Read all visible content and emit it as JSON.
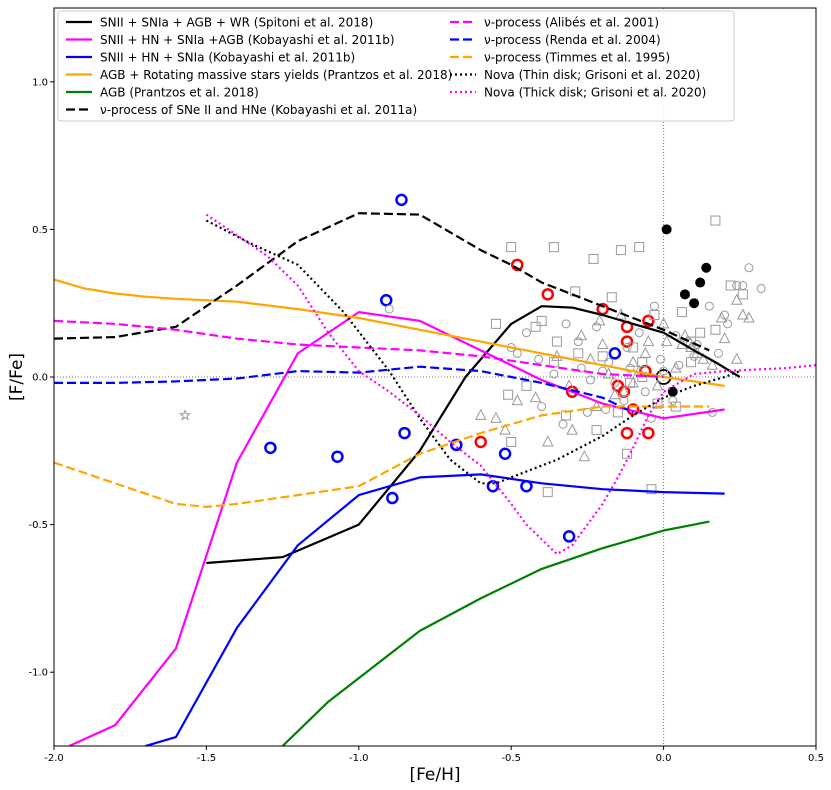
{
  "chart_data": {
    "type": "line",
    "xlabel": "[Fe/H]",
    "ylabel": "[F/Fe]",
    "xlim": [
      -2.0,
      0.5
    ],
    "ylim": [
      -1.25,
      1.25
    ],
    "xticks": [
      -2.0,
      -1.5,
      -1.0,
      -0.5,
      0.0,
      0.5
    ],
    "yticks": [
      -1.0,
      -0.5,
      0.0,
      0.5,
      1.0
    ],
    "xtick_labels": [
      "-2.0",
      "-1.5",
      "-1.0",
      "-0.5",
      "0.0",
      "0.5"
    ],
    "ytick_labels": [
      "-1.0",
      "-0.5",
      "0.0",
      "0.5",
      "1.0"
    ],
    "reference_lines": {
      "x": 0.0,
      "y": 0.0,
      "style": "dotted",
      "color": "#777777"
    },
    "legend_placement": "top",
    "series": [
      {
        "name": "SNII + SNIa + AGB + WR (Spitoni et al. 2018)",
        "color": "#000000",
        "dash": "solid",
        "x": [
          -1.5,
          -1.25,
          -1.0,
          -0.8,
          -0.65,
          -0.5,
          -0.4,
          -0.3,
          -0.2,
          -0.1,
          0.0,
          0.1,
          0.17,
          0.25
        ],
        "y": [
          -0.63,
          -0.61,
          -0.5,
          -0.25,
          0.0,
          0.18,
          0.24,
          0.235,
          0.21,
          0.18,
          0.15,
          0.09,
          0.05,
          0.0
        ]
      },
      {
        "name": "SNII + HN + SNIa +AGB (Kobayashi et al. 2011b)",
        "color": "#ff00ff",
        "dash": "solid",
        "x": [
          -1.95,
          -1.8,
          -1.6,
          -1.4,
          -1.2,
          -1.0,
          -0.8,
          -0.6,
          -0.4,
          -0.2,
          0.0,
          0.2
        ],
        "y": [
          -1.25,
          -1.18,
          -0.92,
          -0.29,
          0.08,
          0.22,
          0.19,
          0.09,
          -0.01,
          -0.09,
          -0.14,
          -0.11
        ]
      },
      {
        "name": "SNII + HN + SNIa (Kobayashi et al. 2011b)",
        "color": "#0000ff",
        "dash": "solid",
        "x": [
          -1.7,
          -1.6,
          -1.4,
          -1.2,
          -1.0,
          -0.8,
          -0.6,
          -0.4,
          -0.2,
          0.0,
          0.2
        ],
        "y": [
          -1.25,
          -1.22,
          -0.85,
          -0.57,
          -0.4,
          -0.34,
          -0.33,
          -0.36,
          -0.38,
          -0.39,
          -0.395
        ]
      },
      {
        "name": "AGB + Rotating massive stars yields (Prantzos et al. 2018)",
        "color": "#ffa500",
        "dash": "solid",
        "x": [
          -2.0,
          -1.9,
          -1.8,
          -1.7,
          -1.6,
          -1.5,
          -1.4,
          -1.2,
          -1.0,
          -0.8,
          -0.6,
          -0.4,
          -0.2,
          0.0,
          0.1,
          0.2
        ],
        "y": [
          0.33,
          0.3,
          0.283,
          0.272,
          0.265,
          0.26,
          0.255,
          0.23,
          0.2,
          0.16,
          0.12,
          0.08,
          0.04,
          0.0,
          -0.015,
          -0.03
        ]
      },
      {
        "name": "AGB (Prantzos et al. 2018)",
        "color": "#008000",
        "dash": "solid",
        "x": [
          -1.25,
          -1.1,
          -1.0,
          -0.9,
          -0.8,
          -0.6,
          -0.4,
          -0.2,
          0.0,
          0.1,
          0.15
        ],
        "y": [
          -1.25,
          -1.1,
          -1.02,
          -0.94,
          -0.86,
          -0.75,
          -0.65,
          -0.58,
          -0.52,
          -0.5,
          -0.49
        ]
      },
      {
        "name": "ν-process of SNe II and HNe (Kobayashi et al. 2011a)",
        "color": "#000000",
        "dash": "dashed",
        "x": [
          -2.0,
          -1.8,
          -1.6,
          -1.4,
          -1.2,
          -1.0,
          -0.8,
          -0.6,
          -0.5,
          -0.4,
          -0.2,
          0.0,
          0.15
        ],
        "y": [
          0.13,
          0.135,
          0.17,
          0.31,
          0.46,
          0.555,
          0.55,
          0.43,
          0.38,
          0.32,
          0.24,
          0.16,
          0.09
        ]
      },
      {
        "name": "ν-process (Alibés et al. 2001)",
        "color": "#ff00ff",
        "dash": "dashed",
        "x": [
          -2.0,
          -1.8,
          -1.6,
          -1.4,
          -1.2,
          -1.0,
          -0.8,
          -0.6,
          -0.4,
          -0.2,
          0.0
        ],
        "y": [
          0.19,
          0.18,
          0.16,
          0.13,
          0.11,
          0.1,
          0.09,
          0.07,
          0.04,
          0.01,
          0.0
        ]
      },
      {
        "name": "ν-process (Renda et al. 2004)",
        "color": "#0000ff",
        "dash": "dashed",
        "x": [
          -2.0,
          -1.8,
          -1.6,
          -1.4,
          -1.2,
          -1.0,
          -0.8,
          -0.6,
          -0.4,
          -0.2,
          -0.1
        ],
        "y": [
          -0.02,
          -0.02,
          -0.015,
          -0.005,
          0.02,
          0.015,
          0.035,
          0.02,
          -0.02,
          -0.07,
          -0.12
        ]
      },
      {
        "name": "ν-process (Timmes et al. 1995)",
        "color": "#ffa500",
        "dash": "dashed",
        "x": [
          -2.0,
          -1.8,
          -1.6,
          -1.5,
          -1.4,
          -1.2,
          -1.0,
          -0.8,
          -0.6,
          -0.4,
          -0.2,
          0.0,
          0.15
        ],
        "y": [
          -0.29,
          -0.36,
          -0.43,
          -0.44,
          -0.43,
          -0.4,
          -0.37,
          -0.26,
          -0.19,
          -0.13,
          -0.1,
          -0.1,
          -0.1
        ]
      },
      {
        "name": "Nova (Thin disk; Grisoni et al. 2020)",
        "color": "#000000",
        "dash": "dotted",
        "x": [
          -1.5,
          -1.35,
          -1.2,
          -1.05,
          -0.9,
          -0.8,
          -0.7,
          -0.6,
          -0.55,
          -0.45,
          -0.35,
          -0.2,
          -0.1,
          0.0,
          0.1,
          0.2,
          0.25
        ],
        "y": [
          0.53,
          0.45,
          0.38,
          0.22,
          0.02,
          -0.14,
          -0.28,
          -0.36,
          -0.36,
          -0.32,
          -0.28,
          -0.2,
          -0.13,
          -0.07,
          -0.03,
          0.0,
          0.02
        ]
      },
      {
        "name": "Nova (Thick disk; Grisoni et al. 2020)",
        "color": "#ff00ff",
        "dash": "dotted",
        "x": [
          -1.5,
          -1.4,
          -1.3,
          -1.2,
          -1.1,
          -1.0,
          -0.9,
          -0.8,
          -0.7,
          -0.6,
          -0.5,
          -0.45,
          -0.4,
          -0.35,
          -0.3,
          -0.25,
          -0.2,
          -0.15,
          -0.1,
          -0.05,
          0.0,
          0.1,
          0.2,
          0.3,
          0.4,
          0.5
        ],
        "y": [
          0.55,
          0.48,
          0.41,
          0.31,
          0.15,
          0.02,
          -0.05,
          -0.13,
          -0.22,
          -0.3,
          -0.43,
          -0.5,
          -0.55,
          -0.6,
          -0.57,
          -0.5,
          -0.43,
          -0.34,
          -0.24,
          -0.13,
          -0.05,
          0.01,
          0.02,
          0.025,
          0.03,
          0.04
        ]
      }
    ],
    "scatter": [
      {
        "marker": "circle-open",
        "color": "#0000ff",
        "x": [
          -0.86,
          -0.91,
          -1.29,
          -1.07,
          -0.85,
          -0.89,
          -0.68,
          -0.52,
          -0.56,
          -0.45,
          -0.31,
          -0.16
        ],
        "y": [
          0.6,
          0.26,
          -0.24,
          -0.27,
          -0.19,
          -0.41,
          -0.23,
          -0.26,
          -0.37,
          -0.37,
          -0.54,
          0.08
        ]
      },
      {
        "marker": "circle-open",
        "color": "#ff0000",
        "x": [
          -0.48,
          -0.38,
          -0.2,
          -0.12,
          -0.05,
          -0.12,
          -0.6,
          -0.3,
          -0.06,
          -0.15,
          -0.13,
          -0.1,
          -0.05,
          -0.12
        ],
        "y": [
          0.38,
          0.28,
          0.23,
          0.17,
          0.19,
          0.12,
          -0.22,
          -0.05,
          0.02,
          -0.03,
          -0.05,
          -0.11,
          -0.19,
          -0.19
        ]
      },
      {
        "marker": "circle-filled",
        "color": "#000000",
        "x": [
          0.01,
          0.14,
          0.12,
          0.1,
          0.07,
          0.03
        ],
        "y": [
          0.5,
          0.37,
          0.32,
          0.25,
          0.28,
          -0.05
        ]
      },
      {
        "marker": "circle-open-large",
        "color": "#000000",
        "x": [
          0.0
        ],
        "y": [
          0.0
        ]
      },
      {
        "marker": "star-open",
        "color": "#999999",
        "x": [
          -1.57
        ],
        "y": [
          -0.13
        ]
      },
      {
        "marker": "square-open",
        "color": "#999999",
        "x": [
          -0.5,
          -0.36,
          -0.23,
          -0.4,
          -0.14,
          -0.08,
          -0.29,
          -0.17,
          -0.55,
          -0.42,
          -0.35,
          -0.1,
          -0.07,
          -0.2,
          -0.03,
          0.06,
          0.12,
          0.17,
          0.22,
          0.17,
          0.26,
          -0.45,
          -0.32,
          -0.28,
          -0.11,
          -0.02,
          0.09,
          -0.5,
          -0.22,
          -0.38,
          -0.15,
          -0.07,
          -0.04,
          -0.36,
          -0.51,
          -0.12,
          0.04,
          0.09
        ],
        "y": [
          0.44,
          0.44,
          0.4,
          0.19,
          0.43,
          0.44,
          0.29,
          0.27,
          0.18,
          0.17,
          0.12,
          0.1,
          0.05,
          0.07,
          0.21,
          0.22,
          0.15,
          0.53,
          0.31,
          0.16,
          0.28,
          -0.03,
          -0.13,
          0.08,
          -0.02,
          -0.09,
          0.05,
          -0.22,
          -0.18,
          -0.39,
          -0.12,
          0.0,
          -0.38,
          0.05,
          -0.06,
          -0.26,
          -0.1,
          0.12
        ]
      },
      {
        "marker": "circle-open",
        "color": "#999999",
        "x": [
          -0.9,
          -0.5,
          -0.45,
          -0.32,
          -0.28,
          -0.22,
          -0.18,
          -0.12,
          -0.08,
          -0.03,
          -0.01,
          0.04,
          0.08,
          0.11,
          0.15,
          0.18,
          0.21,
          0.24,
          0.26,
          0.28,
          0.32,
          -0.48,
          -0.41,
          -0.36,
          -0.27,
          -0.24,
          -0.16,
          -0.11,
          -0.06,
          0.0,
          0.05,
          0.1,
          -0.4,
          -0.33,
          -0.19,
          -0.13,
          -0.04,
          0.03,
          0.16,
          0.2,
          -0.25,
          -0.2
        ],
        "y": [
          0.23,
          0.1,
          0.15,
          0.18,
          0.12,
          0.17,
          0.05,
          0.1,
          0.15,
          0.24,
          0.06,
          0.14,
          0.12,
          0.11,
          0.24,
          0.08,
          0.18,
          0.31,
          0.31,
          0.37,
          0.3,
          0.08,
          0.06,
          0.01,
          0.03,
          -0.01,
          -0.02,
          0.03,
          -0.05,
          0.02,
          0.04,
          0.07,
          -0.1,
          -0.16,
          -0.11,
          -0.08,
          -0.14,
          -0.08,
          -0.12,
          0.21,
          -0.12,
          0.02
        ]
      },
      {
        "marker": "triangle-open",
        "color": "#999999",
        "x": [
          -0.6,
          -0.48,
          -0.35,
          -0.27,
          -0.21,
          -0.14,
          -0.1,
          -0.05,
          0.0,
          0.06,
          0.11,
          0.16,
          0.2,
          0.24,
          0.26,
          -0.55,
          -0.42,
          -0.31,
          -0.24,
          -0.18,
          -0.13,
          -0.08,
          -0.02,
          0.04,
          0.09,
          0.13,
          0.19,
          0.24,
          -0.52,
          -0.38,
          -0.3,
          -0.22,
          -0.16,
          -0.1,
          -0.06,
          0.01,
          0.07,
          0.28,
          -0.2,
          -0.26
        ],
        "y": [
          -0.13,
          -0.08,
          0.07,
          0.14,
          0.19,
          0.21,
          0.05,
          0.12,
          0.18,
          0.11,
          0.08,
          0.04,
          0.13,
          0.26,
          0.21,
          -0.14,
          -0.07,
          -0.03,
          0.06,
          0.01,
          -0.05,
          0.02,
          -0.03,
          0.03,
          0.1,
          0.06,
          0.2,
          0.06,
          -0.18,
          -0.22,
          -0.18,
          -0.1,
          -0.06,
          -0.02,
          0.08,
          0.12,
          0.14,
          0.2,
          0.11,
          -0.27
        ]
      }
    ]
  },
  "legend": {
    "left": [
      {
        "label": "SNII + SNIa + AGB + WR (Spitoni et al. 2018)",
        "color": "#000000",
        "dash": "solid"
      },
      {
        "label": "SNII + HN + SNIa +AGB (Kobayashi et al. 2011b)",
        "color": "#ff00ff",
        "dash": "solid"
      },
      {
        "label": "SNII + HN + SNIa (Kobayashi et al. 2011b)",
        "color": "#0000ff",
        "dash": "solid"
      },
      {
        "label": "AGB + Rotating massive stars yields (Prantzos et al. 2018)",
        "color": "#ffa500",
        "dash": "solid"
      },
      {
        "label": "AGB (Prantzos et al. 2018)",
        "color": "#008000",
        "dash": "solid"
      },
      {
        "label": "ν-process of SNe II and HNe (Kobayashi et al. 2011a)",
        "color": "#000000",
        "dash": "dashed"
      }
    ],
    "right": [
      {
        "label": "ν-process (Alibés et al. 2001)",
        "color": "#ff00ff",
        "dash": "dashed"
      },
      {
        "label": "ν-process (Renda et al. 2004)",
        "color": "#0000ff",
        "dash": "dashed"
      },
      {
        "label": "ν-process (Timmes et al. 1995)",
        "color": "#ffa500",
        "dash": "dashed"
      },
      {
        "label": "Nova (Thin disk; Grisoni et al. 2020)",
        "color": "#000000",
        "dash": "dotted"
      },
      {
        "label": "Nova (Thick disk; Grisoni et al. 2020)",
        "color": "#ff00ff",
        "dash": "dotted"
      }
    ]
  }
}
